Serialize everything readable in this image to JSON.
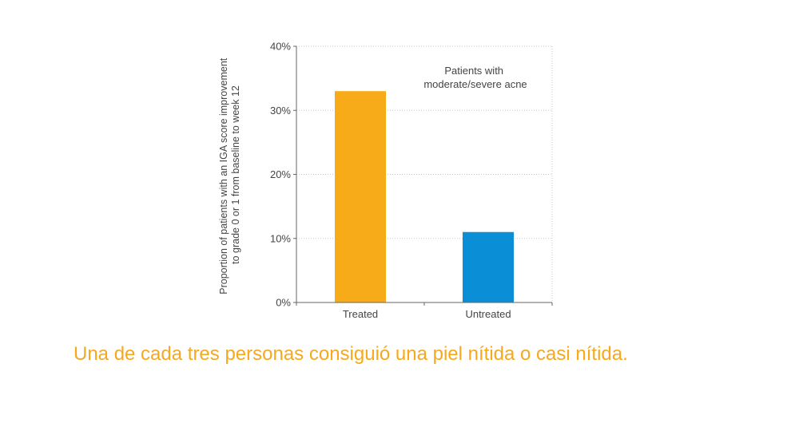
{
  "chart_data": {
    "type": "bar",
    "categories": [
      "Treated",
      "Untreated"
    ],
    "values": [
      33,
      11
    ],
    "colors": [
      "#f8ab18",
      "#0a8fd6"
    ],
    "ylim": [
      0,
      40
    ],
    "yticks": [
      "0%",
      "10%",
      "20%",
      "30%",
      "40%"
    ],
    "ytick_values": [
      0,
      10,
      20,
      30,
      40
    ],
    "ylabel_lines": [
      "Proportion of patients with an IGA score improvement",
      "to grade 0 or 1 from baseline to week 12"
    ],
    "annotation_lines": [
      "Patients with",
      "moderate/severe acne"
    ],
    "grid": true
  },
  "caption": "Una de cada tres personas consiguió una piel nítida o casi nítida."
}
